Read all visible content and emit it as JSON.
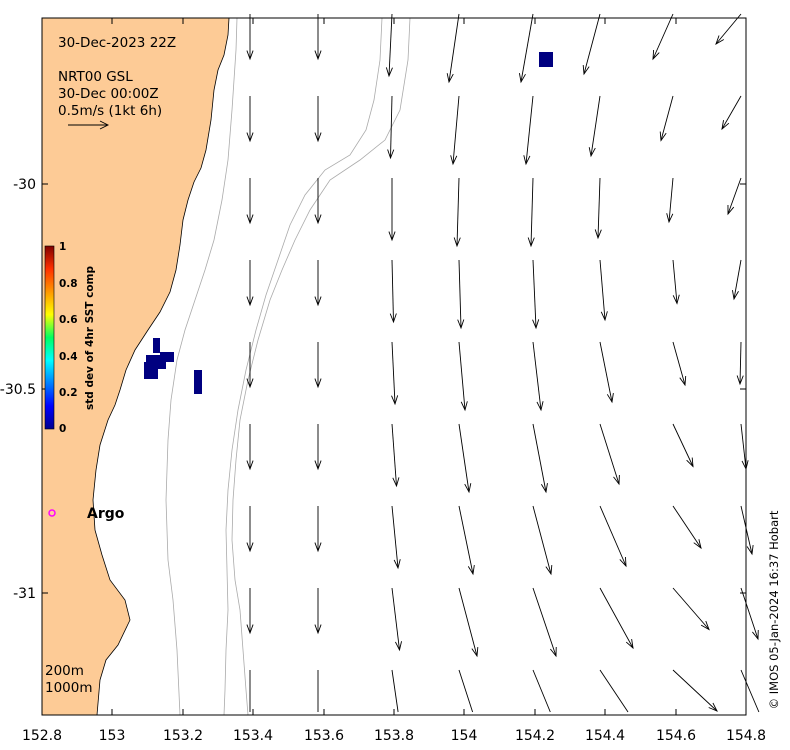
{
  "header": {
    "timestamp": "30-Dec-2023 22Z",
    "product": "NRT00 GSL",
    "current_time": "30-Dec 00:00Z",
    "scale_label": "0.5m/s (1kt 6h)"
  },
  "colorbar": {
    "title": "std dev of 4hr SST comp",
    "ticks": [
      "1",
      "0.8",
      "0.6",
      "0.4",
      "0.2",
      "0"
    ],
    "range": [
      0,
      1
    ]
  },
  "axes": {
    "x_ticks": [
      "152.8",
      "153",
      "153.2",
      "153.4",
      "153.6",
      "153.8",
      "154",
      "154.2",
      "154.4",
      "154.6",
      "154.8"
    ],
    "y_ticks": [
      "-30",
      "-30.5",
      "-31"
    ],
    "lon_range": [
      152.8,
      154.8
    ],
    "lat_range": [
      -31.3,
      -29.6
    ]
  },
  "argo": {
    "label": "Argo",
    "marker_color": "#ff00ff"
  },
  "isobaths": {
    "shallow": "200m",
    "deep": "1000m"
  },
  "credit": "© IMOS 05-Jan-2024 16:37 Hobart",
  "colors": {
    "land": "#fdcb96",
    "sst_low": "#000080",
    "isobath": "#999999"
  }
}
